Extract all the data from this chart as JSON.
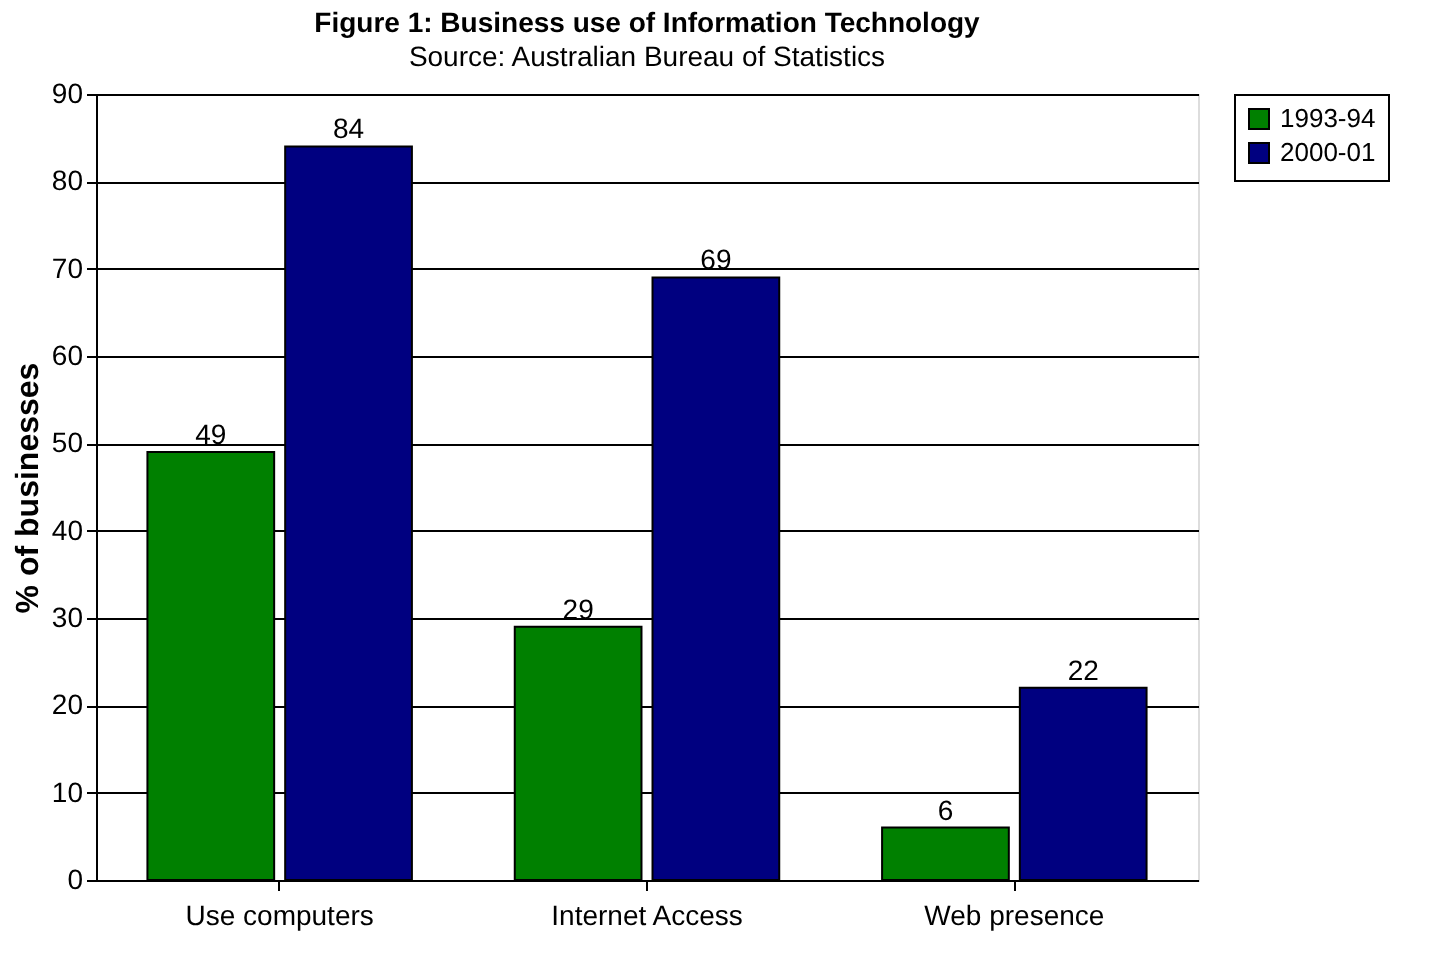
{
  "chart_data": {
    "type": "bar",
    "title": "Figure 1: Business use of Information Technology",
    "subtitle": "Source: Australian Bureau of Statistics",
    "ylabel": "% of businesses",
    "categories": [
      "Use computers",
      "Internet Access",
      "Web presence"
    ],
    "series": [
      {
        "name": "1993-94",
        "color": "#008000",
        "values": [
          49,
          29,
          6
        ]
      },
      {
        "name": "2000-01",
        "color": "#000080",
        "values": [
          84,
          69,
          22
        ]
      }
    ],
    "ylim": [
      0,
      90
    ],
    "yticks": [
      0,
      10,
      20,
      30,
      40,
      50,
      60,
      70,
      80,
      90
    ],
    "grid": "y",
    "legend": "right",
    "data_labels": true
  }
}
